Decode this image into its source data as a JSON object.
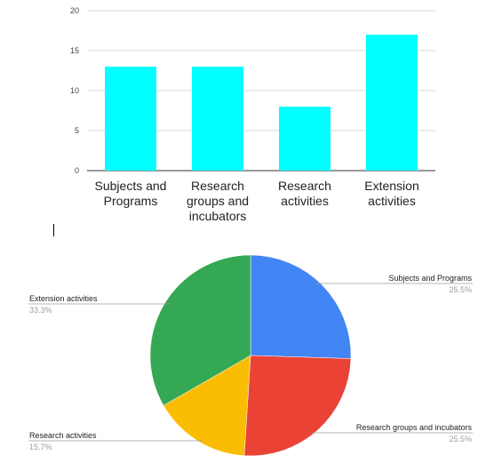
{
  "chart_data": [
    {
      "type": "bar",
      "categories": [
        [
          "Subjects and",
          "Programs"
        ],
        [
          "Research",
          "groups and",
          "incubators"
        ],
        [
          "Research",
          "activities"
        ],
        [
          "Extension",
          "activities"
        ]
      ],
      "values": [
        13,
        13,
        8,
        17
      ],
      "ylim": [
        0,
        20
      ],
      "yticks": [
        "0",
        "5",
        "10",
        "15",
        "20"
      ],
      "grid": true,
      "colors": {
        "bar": "#00ffff",
        "grid": "#d9d9d9",
        "axis": "#333333"
      }
    },
    {
      "type": "pie",
      "slices": [
        {
          "label": "Subjects and Programs",
          "value": 25.5,
          "pct_label": "25.5%",
          "color": "#4285f4"
        },
        {
          "label": "Research groups and incubators",
          "value": 25.5,
          "pct_label": "25.5%",
          "color": "#ea4335"
        },
        {
          "label": "Research activities",
          "value": 15.7,
          "pct_label": "15.7%",
          "color": "#fbbc04"
        },
        {
          "label": "Extension activities",
          "value": 33.3,
          "pct_label": "33.3%",
          "color": "#34a853"
        }
      ],
      "start_angle": "12 o'clock",
      "direction": "clockwise",
      "label_style": "leader lines"
    }
  ]
}
